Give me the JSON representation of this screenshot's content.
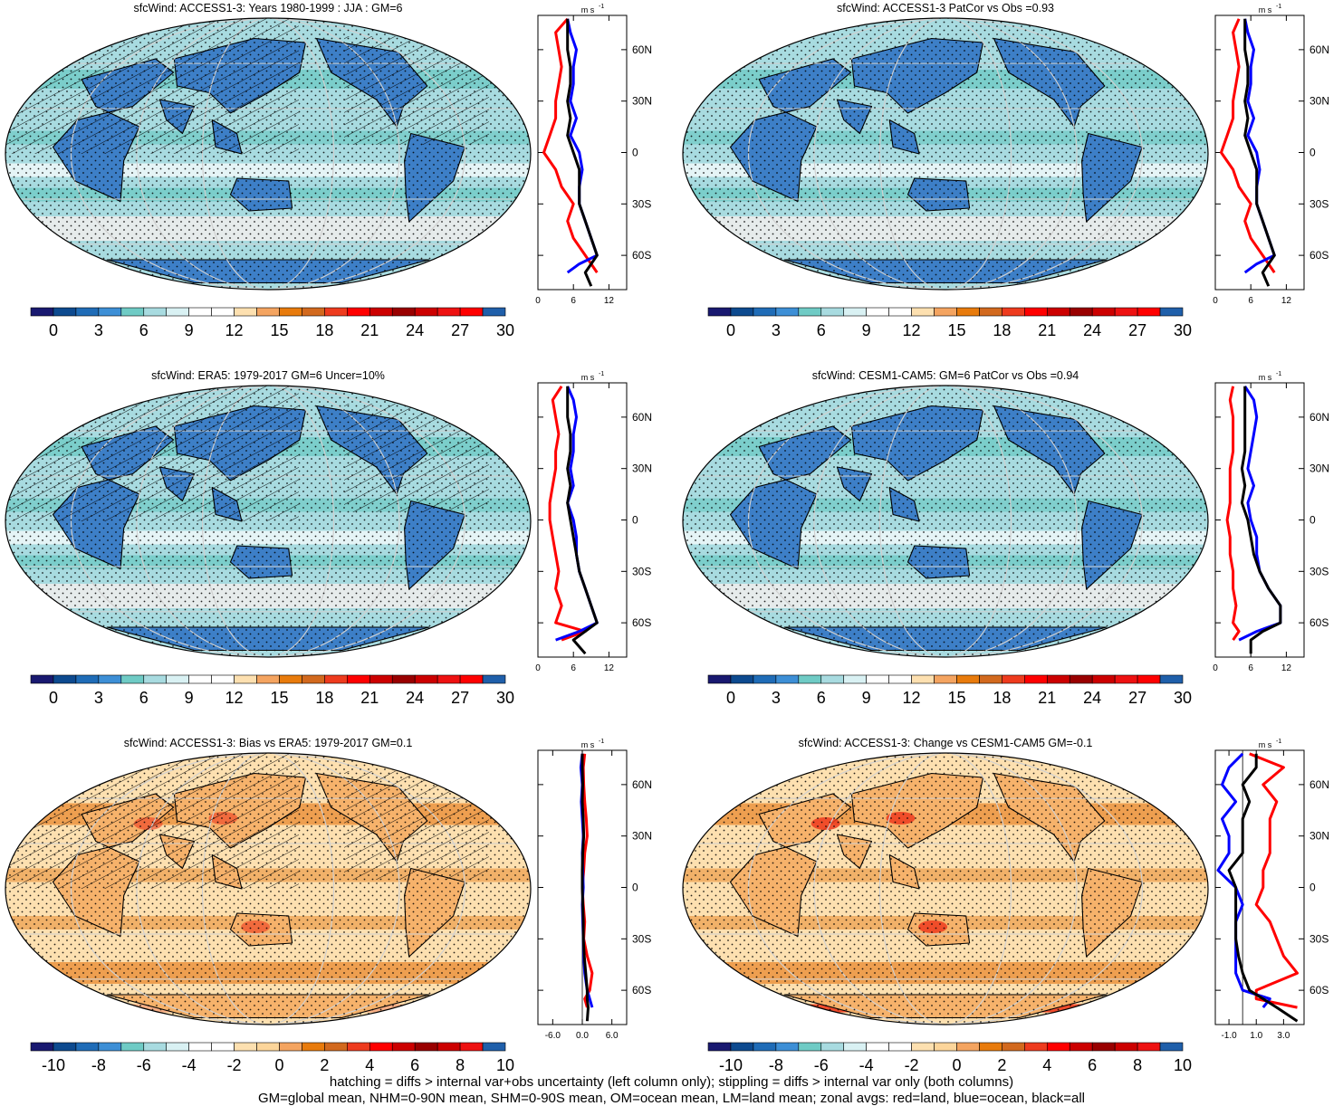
{
  "colors": {
    "land_mean_line": "#ff0000",
    "ocean_mean_line": "#0000ff",
    "all_mean_line": "#000000"
  },
  "panels": [
    {
      "id": "p1",
      "title": "sfcWind: ACCESS1-3: Years 1980-1999 : JJA : GM=6",
      "kind": "mean",
      "hatching": true,
      "stipple": true,
      "colorbar_ticks": [
        "0",
        "3",
        "6",
        "9",
        "12",
        "15",
        "18",
        "21",
        "24",
        "27",
        "30"
      ],
      "profile_unit": "m s",
      "profile_xticks": [
        "0",
        "6",
        "12"
      ],
      "profile_yticks": [
        "60N",
        "30N",
        "0",
        "30S",
        "60S"
      ]
    },
    {
      "id": "p2",
      "title": "sfcWind: ACCESS1-3 PatCor vs Obs =0.93",
      "kind": "mean",
      "hatching": false,
      "stipple": true,
      "colorbar_ticks": [
        "0",
        "3",
        "6",
        "9",
        "12",
        "15",
        "18",
        "21",
        "24",
        "27",
        "30"
      ],
      "profile_unit": "m s",
      "profile_xticks": [
        "0",
        "6",
        "12"
      ],
      "profile_yticks": [
        "60N",
        "30N",
        "0",
        "30S",
        "60S"
      ]
    },
    {
      "id": "p3",
      "title": "sfcWind: ERA5: 1979-2017 GM=6 Uncer=10%",
      "kind": "mean",
      "hatching": true,
      "stipple": true,
      "colorbar_ticks": [
        "0",
        "3",
        "6",
        "9",
        "12",
        "15",
        "18",
        "21",
        "24",
        "27",
        "30"
      ],
      "profile_unit": "m s",
      "profile_xticks": [
        "0",
        "6",
        "12"
      ],
      "profile_yticks": [
        "60N",
        "30N",
        "0",
        "30S",
        "60S"
      ]
    },
    {
      "id": "p4",
      "title": "sfcWind: CESM1-CAM5: GM=6 PatCor vs Obs =0.94",
      "kind": "mean",
      "hatching": false,
      "stipple": true,
      "colorbar_ticks": [
        "0",
        "3",
        "6",
        "9",
        "12",
        "15",
        "18",
        "21",
        "24",
        "27",
        "30"
      ],
      "profile_unit": "m s",
      "profile_xticks": [
        "0",
        "6",
        "12"
      ],
      "profile_yticks": [
        "60N",
        "30N",
        "0",
        "30S",
        "60S"
      ]
    },
    {
      "id": "p5",
      "title": "sfcWind: ACCESS1-3: Bias vs ERA5: 1979-2017 GM=0.1",
      "kind": "diff",
      "hatching": true,
      "stipple": true,
      "colorbar_ticks": [
        "-10",
        "-8",
        "-6",
        "-4",
        "-2",
        "0",
        "2",
        "4",
        "6",
        "8",
        "10"
      ],
      "profile_unit": "m s",
      "profile_xticks": [
        "-6.0",
        "0.0",
        "6.0"
      ],
      "profile_yticks": [
        "60N",
        "30N",
        "0",
        "30S",
        "60S"
      ]
    },
    {
      "id": "p6",
      "title": "sfcWind: ACCESS1-3: Change vs CESM1-CAM5 GM=-0.1",
      "kind": "diff",
      "hatching": false,
      "stipple": true,
      "colorbar_ticks": [
        "-10",
        "-8",
        "-6",
        "-4",
        "-2",
        "0",
        "2",
        "4",
        "6",
        "8",
        "10"
      ],
      "profile_unit": "m s",
      "profile_xticks": [
        "-1.0",
        "1.0",
        "3.0"
      ],
      "profile_yticks": [
        "60N",
        "30N",
        "0",
        "30S",
        "60S"
      ]
    }
  ],
  "colorbars": {
    "mean_colors": [
      "#191970",
      "#0d4a8f",
      "#1f6cb7",
      "#3d8fd6",
      "#6fcbc5",
      "#a8dbe0",
      "#d9f1f3",
      "#ffffff",
      "#ffffff",
      "#fde0b0",
      "#f4a460",
      "#e87b0c",
      "#d2691e",
      "#ee3b1e",
      "#ff0000",
      "#cc0000",
      "#990000",
      "#cc0000",
      "#ee1111",
      "#ff0000",
      "#1f5faa"
    ],
    "diff_colors": [
      "#191970",
      "#0d4a8f",
      "#1f6cb7",
      "#3d8fd6",
      "#6fcbc5",
      "#a8dbe0",
      "#d9f1f3",
      "#ffffff",
      "#ffffff",
      "#fde0b0",
      "#fcd59a",
      "#f4a460",
      "#e87b0c",
      "#d2691e",
      "#ee3b1e",
      "#ff0000",
      "#cc0000",
      "#990000",
      "#cc0000",
      "#ee1111",
      "#1f5faa"
    ]
  },
  "map_fill": {
    "mean_ocean": "#a8dbe0",
    "mean_land": "#3d7fc7",
    "mean_band": "#6fcbc5",
    "mean_calm": "#ececec",
    "diff_ocean": "#fde0b0",
    "diff_land": "#f6b26b",
    "diff_band": "#e88a30",
    "diff_hot": "#ee3b1e"
  },
  "chart_data": [
    {
      "type": "line",
      "title": "sfcWind: ACCESS1-3: Years 1980-1999 : JJA : GM=6",
      "xlabel": "m s-1",
      "xlim": [
        0,
        15
      ],
      "ylim": [
        -80,
        80
      ],
      "series": [
        {
          "name": "red=land",
          "y": [
            78,
            70,
            60,
            50,
            40,
            30,
            20,
            10,
            0,
            -10,
            -20,
            -30,
            -40,
            -50,
            -60,
            -65,
            -70
          ],
          "values": [
            5,
            3,
            3.5,
            4,
            3.5,
            3,
            3,
            2,
            1,
            3,
            4,
            6,
            5,
            6,
            8,
            9,
            10
          ]
        },
        {
          "name": "blue=ocean",
          "y": [
            78,
            70,
            60,
            50,
            40,
            30,
            20,
            10,
            0,
            -10,
            -20,
            -30,
            -40,
            -50,
            -60,
            -65,
            -70
          ],
          "values": [
            5,
            5.5,
            6.5,
            6,
            6,
            5.5,
            6.5,
            5.5,
            7,
            7.5,
            7,
            7,
            8,
            9,
            10,
            7,
            5
          ]
        },
        {
          "name": "black=all",
          "y": [
            78,
            70,
            60,
            50,
            40,
            30,
            20,
            10,
            0,
            -10,
            -20,
            -30,
            -40,
            -50,
            -60,
            -65,
            -70,
            -78
          ],
          "values": [
            5,
            5,
            5,
            5.5,
            5.5,
            5,
            5.5,
            5,
            6,
            7,
            7,
            7,
            8,
            9,
            10,
            9,
            8,
            9
          ]
        }
      ]
    },
    {
      "type": "line",
      "title": "sfcWind: ACCESS1-3 PatCor vs Obs =0.93",
      "xlabel": "m s-1",
      "xlim": [
        0,
        15
      ],
      "ylim": [
        -80,
        80
      ],
      "series": [
        {
          "name": "red=land",
          "y": [
            78,
            70,
            60,
            50,
            40,
            30,
            20,
            10,
            0,
            -10,
            -20,
            -30,
            -40,
            -50,
            -60,
            -65,
            -70
          ],
          "values": [
            4,
            3,
            3.5,
            4,
            3.5,
            3,
            3,
            2,
            1,
            3,
            4,
            6,
            5,
            6,
            8,
            9,
            10
          ]
        },
        {
          "name": "blue=ocean",
          "y": [
            78,
            70,
            60,
            50,
            40,
            30,
            20,
            10,
            0,
            -10,
            -20,
            -30,
            -40,
            -50,
            -60,
            -65,
            -70
          ],
          "values": [
            5,
            5.5,
            6.5,
            6,
            6,
            5.5,
            6.5,
            5.5,
            7,
            7.5,
            7,
            7,
            8,
            9,
            10,
            7,
            5
          ]
        },
        {
          "name": "black=all",
          "y": [
            78,
            70,
            60,
            50,
            40,
            30,
            20,
            10,
            0,
            -10,
            -20,
            -30,
            -40,
            -50,
            -60,
            -65,
            -70,
            -78
          ],
          "values": [
            5,
            5,
            5,
            5.5,
            5.5,
            5,
            5.5,
            5,
            6,
            7,
            7,
            7,
            8,
            9,
            10,
            9,
            8,
            9
          ]
        }
      ]
    },
    {
      "type": "line",
      "title": "sfcWind: ERA5: 1979-2017 GM=6 Uncer=10%",
      "xlabel": "m s-1",
      "xlim": [
        0,
        15
      ],
      "ylim": [
        -80,
        80
      ],
      "series": [
        {
          "name": "red=land",
          "y": [
            78,
            70,
            60,
            50,
            40,
            30,
            20,
            10,
            0,
            -10,
            -20,
            -30,
            -40,
            -50,
            -60,
            -65,
            -70
          ],
          "values": [
            4,
            2.5,
            3,
            3.5,
            3,
            3,
            2.5,
            2,
            2,
            2.5,
            3,
            3.5,
            3,
            4,
            3,
            8,
            4
          ]
        },
        {
          "name": "blue=ocean",
          "y": [
            78,
            70,
            60,
            50,
            40,
            30,
            20,
            10,
            0,
            -10,
            -20,
            -30,
            -40,
            -50,
            -60,
            -65,
            -70
          ],
          "values": [
            5,
            6,
            6.5,
            6,
            6,
            5.5,
            6,
            5,
            6,
            6.5,
            6.5,
            7,
            8,
            9,
            10,
            7,
            3
          ]
        },
        {
          "name": "black=all",
          "y": [
            78,
            70,
            60,
            50,
            40,
            30,
            20,
            10,
            0,
            -10,
            -20,
            -30,
            -40,
            -50,
            -60,
            -65,
            -70,
            -78
          ],
          "values": [
            5,
            5,
            5,
            5.5,
            5.5,
            5,
            5.5,
            5,
            5.5,
            6,
            6.5,
            7,
            8,
            9,
            10,
            8,
            6,
            8
          ]
        }
      ]
    },
    {
      "type": "line",
      "title": "sfcWind: CESM1-CAM5: GM=6 PatCor vs Obs =0.94",
      "xlabel": "m s-1",
      "xlim": [
        0,
        15
      ],
      "ylim": [
        -80,
        80
      ],
      "series": [
        {
          "name": "red=land",
          "y": [
            78,
            70,
            60,
            50,
            40,
            30,
            20,
            10,
            0,
            -10,
            -20,
            -30,
            -40,
            -50,
            -60,
            -65,
            -70
          ],
          "values": [
            3,
            2.5,
            3,
            3,
            3,
            2.5,
            2.5,
            2.5,
            2,
            2.5,
            2.5,
            3,
            3,
            3.5,
            3,
            4,
            3
          ]
        },
        {
          "name": "blue=ocean",
          "y": [
            78,
            70,
            60,
            50,
            40,
            30,
            20,
            10,
            0,
            -10,
            -20,
            -30,
            -40,
            -50,
            -60,
            -65,
            -70
          ],
          "values": [
            5,
            6.5,
            7,
            6.5,
            6,
            5.5,
            6.5,
            5.5,
            6,
            7,
            7,
            7.5,
            9,
            11,
            11,
            7,
            4
          ]
        },
        {
          "name": "black=all",
          "y": [
            78,
            70,
            60,
            50,
            40,
            30,
            20,
            10,
            0,
            -10,
            -20,
            -30,
            -40,
            -50,
            -60,
            -65,
            -70,
            -78
          ],
          "values": [
            5,
            5,
            5,
            5,
            5,
            4.5,
            5,
            4.5,
            5.5,
            6,
            6.5,
            7.5,
            9,
            11,
            11,
            8,
            6,
            6
          ]
        }
      ]
    },
    {
      "type": "line",
      "title": "sfcWind: ACCESS1-3: Bias vs ERA5: 1979-2017 GM=0.1",
      "xlabel": "m s-1",
      "xlim": [
        -9,
        9
      ],
      "ylim": [
        -80,
        80
      ],
      "series": [
        {
          "name": "red=land",
          "y": [
            78,
            70,
            60,
            50,
            40,
            30,
            20,
            10,
            0,
            -10,
            -20,
            -30,
            -40,
            -50,
            -60,
            -65,
            -70
          ],
          "values": [
            0.5,
            0.2,
            0.3,
            0.5,
            0.8,
            1,
            0.5,
            0.3,
            0,
            0.2,
            0.5,
            0.3,
            1,
            2,
            1.5,
            0.5,
            1
          ]
        },
        {
          "name": "blue=ocean",
          "y": [
            78,
            70,
            60,
            50,
            40,
            30,
            20,
            10,
            0,
            -10,
            -20,
            -30,
            -40,
            -50,
            -60,
            -65,
            -70
          ],
          "values": [
            0,
            -0.3,
            0,
            -0.2,
            0,
            0.2,
            0,
            0.1,
            0.2,
            0,
            0.1,
            0.2,
            0.3,
            0.5,
            1,
            1.5,
            2
          ]
        },
        {
          "name": "black=all",
          "y": [
            78,
            70,
            60,
            50,
            40,
            30,
            20,
            10,
            0,
            -10,
            -20,
            -30,
            -40,
            -50,
            -60,
            -65,
            -70,
            -78
          ],
          "values": [
            0,
            0,
            0.1,
            0,
            0.2,
            0.3,
            0.1,
            0,
            0,
            0.1,
            0.2,
            0.2,
            0.4,
            0.7,
            1,
            1,
            1.2,
            1
          ]
        }
      ]
    },
    {
      "type": "line",
      "title": "sfcWind: ACCESS1-3: Change vs CESM1-CAM5 GM=-0.1",
      "xlabel": "m s-1",
      "xlim": [
        -2,
        4.5
      ],
      "ylim": [
        -80,
        80
      ],
      "series": [
        {
          "name": "red=land",
          "y": [
            78,
            70,
            60,
            50,
            40,
            30,
            20,
            10,
            0,
            -10,
            -20,
            -30,
            -40,
            -50,
            -60,
            -65,
            -70
          ],
          "values": [
            0.5,
            3,
            1.5,
            2.5,
            2,
            2,
            2,
            1.5,
            1.5,
            1,
            2,
            2.5,
            3,
            4,
            1,
            1,
            4
          ]
        },
        {
          "name": "blue=ocean",
          "y": [
            78,
            70,
            60,
            50,
            40,
            30,
            20,
            10,
            0,
            -10,
            -20,
            -30,
            -40,
            -50,
            -60,
            -65,
            -70
          ],
          "values": [
            0,
            -1,
            -1.5,
            -0.5,
            -1.5,
            -1,
            -1,
            -1.8,
            -0.5,
            0,
            -0.5,
            -0.5,
            -0.5,
            -0.5,
            0,
            2,
            1.5
          ]
        },
        {
          "name": "black=all",
          "y": [
            78,
            70,
            60,
            50,
            40,
            30,
            20,
            10,
            0,
            -10,
            -20,
            -30,
            -40,
            -50,
            -60,
            -65,
            -70,
            -78
          ],
          "values": [
            1,
            1,
            0,
            0.5,
            0,
            0,
            0,
            -1,
            -0.5,
            -0.5,
            -0.5,
            -0.5,
            -0.3,
            0,
            0.5,
            1.5,
            2.5,
            4
          ]
        }
      ]
    }
  ],
  "footer": {
    "line1": "hatching = diffs > internal var+obs uncertainty (left column only); stippling = diffs > internal var only (both columns)",
    "line2": "GM=global mean, NHM=0-90N mean, SHM=0-90S mean, OM=ocean mean, LM=land mean; zonal avgs: red=land, blue=ocean, black=all"
  }
}
